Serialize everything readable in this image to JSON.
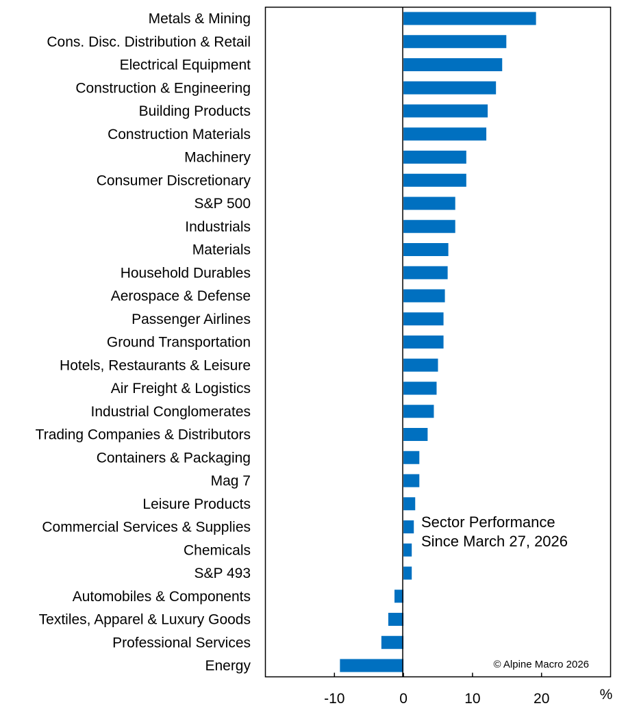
{
  "chart_data": {
    "type": "bar",
    "orientation": "horizontal",
    "categories": [
      "Metals & Mining",
      "Cons. Disc. Distribution & Retail",
      "Electrical Equipment",
      "Construction & Engineering",
      "Building Products",
      "Construction Materials",
      "Machinery",
      "Consumer Discretionary",
      "S&P 500",
      "Industrials",
      "Materials",
      "Household Durables",
      "Aerospace & Defense",
      "Passenger Airlines",
      "Ground Transportation",
      "Hotels, Restaurants & Leisure",
      "Air Freight & Logistics",
      "Industrial Conglomerates",
      "Trading Companies & Distributors",
      "Containers & Packaging",
      "Mag 7",
      "Leisure Products",
      "Commercial Services & Supplies",
      "Chemicals",
      "S&P 493",
      "Automobiles & Components",
      "Textiles, Apparel & Luxury Goods",
      "Professional Services",
      "Energy"
    ],
    "values": [
      19.2,
      14.9,
      14.3,
      13.4,
      12.2,
      12.0,
      9.1,
      9.1,
      7.5,
      7.5,
      6.5,
      6.4,
      6.0,
      5.8,
      5.8,
      5.0,
      4.8,
      4.4,
      3.5,
      2.3,
      2.3,
      1.7,
      1.5,
      1.2,
      1.2,
      -1.3,
      -2.2,
      -3.2,
      -9.2
    ],
    "title": "Sector Performance",
    "subtitle": "Since March 27, 2026",
    "xlabel": "%",
    "xlim": [
      -20,
      30
    ],
    "xticks": [
      -10,
      0,
      10,
      20
    ],
    "xtick_labels": [
      "-10",
      "0",
      "10",
      "20"
    ],
    "copyright": "© Alpine Macro 2026",
    "grid": false,
    "bar_color": "#0070C0"
  }
}
